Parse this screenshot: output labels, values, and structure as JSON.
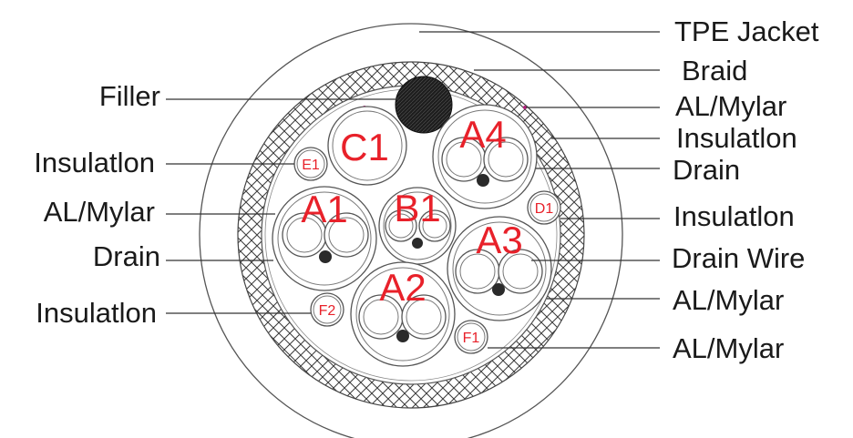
{
  "labels_right": [
    "TPE Jacket",
    "Braid",
    "AL/Mylar",
    "Insulatlon",
    "Drain",
    "Insulatlon",
    "Drain Wire",
    "AL/Mylar",
    "AL/Mylar"
  ],
  "labels_left": [
    "Filler",
    "Insulatlon",
    "AL/Mylar",
    "Drain",
    "Insulatlon"
  ],
  "pair_labels": {
    "c1": "C1",
    "a4": "A4",
    "a1": "A1",
    "b1": "B1",
    "a3": "A3",
    "a2": "A2"
  },
  "single_labels": {
    "e1": "E1",
    "d1": "D1",
    "f2": "F2",
    "f1": "F1"
  },
  "colors": {
    "label_red": "#e8212a",
    "text": "#1a1a1a"
  }
}
